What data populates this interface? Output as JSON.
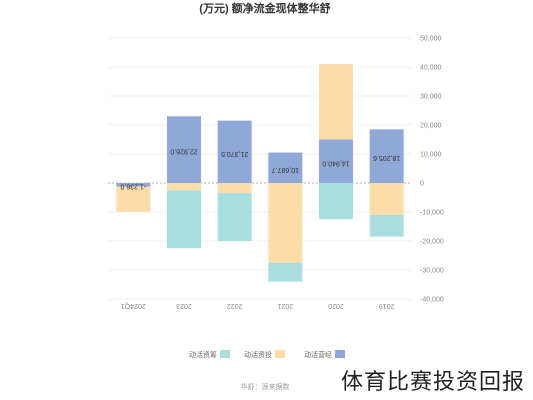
{
  "chart_data": {
    "type": "bar",
    "stacked": true,
    "title": "(万元) 额净流金现体整华舒",
    "categories": [
      "2024Q1",
      "2023",
      "2022",
      "2021",
      "2020",
      "2019"
    ],
    "series": [
      {
        "name": "动活营经",
        "color": "#8fa8d8",
        "values": [
          -1200,
          23000,
          21500,
          10500,
          15000,
          18500
        ]
      },
      {
        "name": "动活资投",
        "color": "#fcdca8",
        "values": [
          -8700,
          -2500,
          -3500,
          -27500,
          26000,
          -11000
        ]
      },
      {
        "name": "动活资筹",
        "color": "#a8dede",
        "values": [
          0,
          -20000,
          -16500,
          -6500,
          -12500,
          -7500
        ]
      }
    ],
    "bar_labels": [
      "-1,236.0",
      "22,926.0",
      "21,370.5",
      "10,687.7",
      "14,940.0",
      "18,205.6"
    ],
    "ylim": [
      -40000,
      50000
    ],
    "yticks": [
      -40000,
      -30000,
      -20000,
      -10000,
      0,
      10000,
      20000,
      30000,
      40000,
      50000
    ],
    "ytick_labels": [
      "-40,000",
      "-30,000",
      "-20,000",
      "-10,000",
      "0",
      "10,000",
      "20,000",
      "30,000",
      "40,000",
      "50,000"
    ],
    "grid": true,
    "legend_position": "bottom-left"
  },
  "footer": {
    "source": "华舒：源来据数",
    "watermark": "体育比赛投资回报"
  }
}
